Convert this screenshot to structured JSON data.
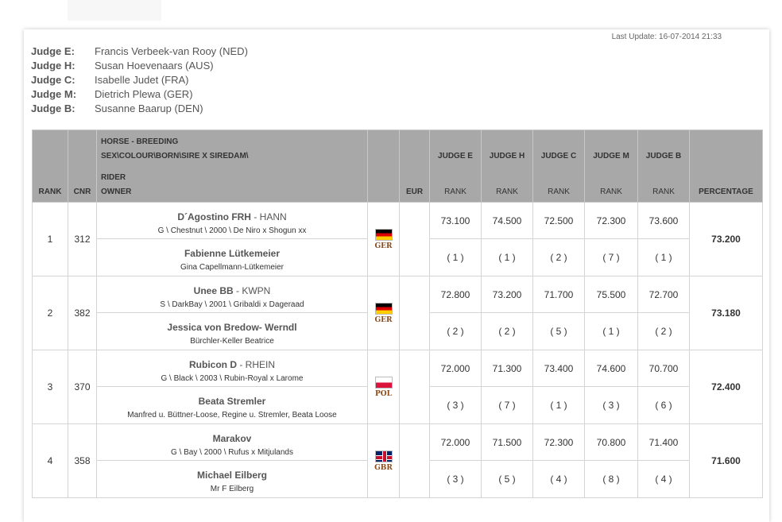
{
  "last_update": "Last Update: 16-07-2014 21:33",
  "judges": [
    {
      "letter": "Judge E:",
      "name": "Francis Verbeek-van Rooy (NED)"
    },
    {
      "letter": "Judge H:",
      "name": "Susan Hoevenaars (AUS)"
    },
    {
      "letter": "Judge C:",
      "name": "Isabelle Judet (FRA)"
    },
    {
      "letter": "Judge M:",
      "name": "Dietrich Plewa (GER)"
    },
    {
      "letter": "Judge B:",
      "name": "Susanne Baarup (DEN)"
    }
  ],
  "headers": {
    "rank": "RANK",
    "cnr": "CNR",
    "horse_breeding": "HORSE - BREEDING",
    "sex_colour": "SEX\\COLOUR\\BORN\\SIRE X SIREDAM\\",
    "rider": "RIDER",
    "owner": "OWNER",
    "eur": "EUR",
    "judge_e": "JUDGE E",
    "judge_h": "JUDGE H",
    "judge_c": "JUDGE C",
    "judge_m": "JUDGE M",
    "judge_b": "JUDGE B",
    "sub_rank": "RANK",
    "percentage": "PERCENTAGE"
  },
  "rows": [
    {
      "rank": "1",
      "cnr": "312",
      "horse": "D´Agostino FRH",
      "breed": " - HANN",
      "desc": "G \\ Chestnut \\ 2000 \\ De Niro x Shogun xx",
      "rider": "Fabienne  Lütkemeier",
      "owner": "Gina Capellmann-Lütkemeier",
      "flag": "GER",
      "scores": [
        "73.100",
        "74.500",
        "72.500",
        "72.300",
        "73.600"
      ],
      "ranks": [
        "( 1 )",
        "( 1 )",
        "( 2 )",
        "( 7 )",
        "( 1 )"
      ],
      "percentage": "73.200"
    },
    {
      "rank": "2",
      "cnr": "382",
      "horse": "Unee BB",
      "breed": " - KWPN",
      "desc": "S \\ DarkBay \\ 2001 \\ Gribaldi x Dageraad",
      "rider": "Jessica  von Bredow- Werndl",
      "owner": "Bürchler-Keller Beatrice",
      "flag": "GER",
      "scores": [
        "72.800",
        "73.200",
        "71.700",
        "75.500",
        "72.700"
      ],
      "ranks": [
        "( 2 )",
        "( 2 )",
        "( 5 )",
        "( 1 )",
        "( 2 )"
      ],
      "percentage": "73.180"
    },
    {
      "rank": "3",
      "cnr": "370",
      "horse": "Rubicon D",
      "breed": " - RHEIN",
      "desc": "G \\ Black \\ 2003 \\ Rubin-Royal x Larome",
      "rider": "Beata  Stremler",
      "owner": "Manfred u. Büttner-Loose, Regine u. Stremler, Beata Loose",
      "flag": "POL",
      "scores": [
        "72.000",
        "71.300",
        "73.400",
        "74.600",
        "70.700"
      ],
      "ranks": [
        "( 3 )",
        "( 7 )",
        "( 1 )",
        "( 3 )",
        "( 6 )"
      ],
      "percentage": "72.400"
    },
    {
      "rank": "4",
      "cnr": "358",
      "horse": "Marakov",
      "breed": "",
      "desc": "G \\ Bay \\ 2000 \\ Rufus x Mitjulands",
      "rider": "Michael  Eilberg",
      "owner": "Mr F Eilberg",
      "flag": "GBR",
      "scores": [
        "72.000",
        "71.500",
        "72.300",
        "70.800",
        "71.400"
      ],
      "ranks": [
        "( 3 )",
        "( 5 )",
        "( 4 )",
        "( 8 )",
        "( 4 )"
      ],
      "percentage": "71.600"
    }
  ]
}
